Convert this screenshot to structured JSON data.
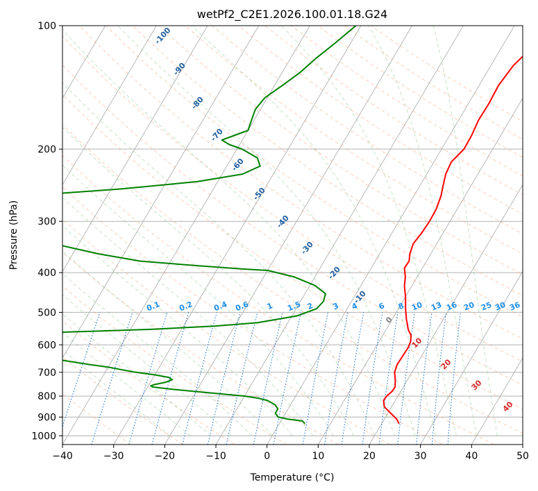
{
  "chart_data": {
    "type": "line",
    "title": "wetPf2_C2E1.2026.100.01.18.G24",
    "xlabel": "Temperature (°C)",
    "ylabel": "Pressure (hPa)",
    "xlim": [
      -40,
      50
    ],
    "ylim": [
      1050,
      100
    ],
    "y_scale": "log",
    "grid": true,
    "x_ticks": [
      -40,
      -30,
      -20,
      -10,
      0,
      10,
      20,
      30,
      40,
      50
    ],
    "x_tick_labels": [
      "−40",
      "−30",
      "−20",
      "−10",
      "0",
      "10",
      "20",
      "30",
      "40",
      "50"
    ],
    "y_ticks": [
      100,
      200,
      300,
      400,
      500,
      600,
      700,
      800,
      900,
      1000
    ],
    "y_tick_labels": [
      "100",
      "200",
      "300",
      "400",
      "500",
      "600",
      "700",
      "800",
      "900",
      "1000"
    ],
    "series": [
      {
        "color": "#ff0000",
        "pressure": [
          934,
          910,
          880,
          850,
          820,
          800,
          780,
          760,
          730,
          700,
          670,
          640,
          610,
          590,
          570,
          550,
          520,
          490,
          460,
          430,
          410,
          390,
          375,
          360,
          340,
          320,
          300,
          280,
          260,
          245,
          230,
          215,
          200,
          185,
          170,
          155,
          140,
          125,
          115,
          100
        ],
        "temperature": [
          23.4,
          22.4,
          20.5,
          18.6,
          17.7,
          17.8,
          18.3,
          18.4,
          17.6,
          16.6,
          16.2,
          16.3,
          16.4,
          16.2,
          15.6,
          14.3,
          12.8,
          11.4,
          10.1,
          8.5,
          7.7,
          6.5,
          6.6,
          5.9,
          5.4,
          5.8,
          6.0,
          5.9,
          5.3,
          4.5,
          3.7,
          3.4,
          4.4,
          4.3,
          3.9,
          4.0,
          3.8,
          4.4,
          5.7,
          9.8
        ]
      },
      {
        "color": "#008000",
        "pressure": [
          934,
          920,
          910,
          900,
          880,
          860,
          840,
          820,
          810,
          800,
          790,
          780,
          770,
          760,
          755,
          750,
          740,
          730,
          720,
          710,
          700,
          690,
          680,
          670,
          640,
          600,
          570,
          560,
          550,
          540,
          530,
          510,
          490,
          470,
          450,
          430,
          410,
          395,
          392,
          385,
          375,
          360,
          340,
          320,
          300,
          280,
          270,
          260,
          250,
          240,
          230,
          220,
          210,
          200,
          195,
          190,
          185,
          180,
          170,
          160,
          150,
          140,
          130,
          120,
          110,
          100
        ],
        "temperature": [
          5.0,
          4.2,
          1.0,
          -1.0,
          -2.0,
          -2.0,
          -3.0,
          -5.0,
          -7.0,
          -10.0,
          -15.0,
          -20.0,
          -25.0,
          -29.0,
          -29.5,
          -29.0,
          -27.0,
          -26.0,
          -27.0,
          -30.0,
          -34.0,
          -37.0,
          -40.0,
          -44.0,
          -55.0,
          -65.0,
          -70.0,
          -55.0,
          -36.0,
          -24.0,
          -16.0,
          -9.0,
          -6.0,
          -5.5,
          -6.0,
          -9.0,
          -14.0,
          -20.0,
          -25.0,
          -34.0,
          -46.0,
          -55.0,
          -65.0,
          -75.0,
          -82.0,
          -88.0,
          -91.0,
          -76.0,
          -58.0,
          -44.0,
          -36.0,
          -33.5,
          -35.0,
          -39.0,
          -42.0,
          -44.0,
          -42.0,
          -40.0,
          -40.5,
          -41.0,
          -40.5,
          -38.5,
          -36.5,
          -35.0,
          -33.0,
          -31.0
        ]
      }
    ],
    "dry_adiabat_labels": [
      "-100",
      "-90",
      "-80",
      "-70",
      "-60",
      "-50",
      "-40",
      "-30",
      "-20",
      "-10"
    ],
    "mixing_ratio_labels": [
      "0.1",
      "0.2",
      "0.4",
      "0.6",
      "1",
      "1.5",
      "2",
      "3",
      "4",
      "6",
      "8",
      "10",
      "13",
      "16",
      "20",
      "25",
      "30",
      "36"
    ],
    "moist_adiabat_labels": [
      "0",
      "10",
      "20",
      "30",
      "40"
    ]
  }
}
